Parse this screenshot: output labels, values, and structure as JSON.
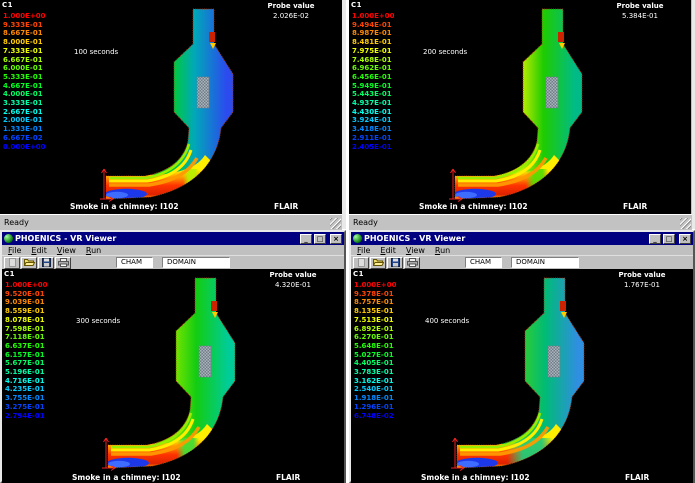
{
  "app": {
    "title": "PHOENICS - VR Viewer",
    "menu": [
      "File",
      "Edit",
      "View",
      "Run"
    ],
    "toolbar": {
      "cham": "CHAM",
      "domain": "DOMAIN",
      "icons": [
        "new",
        "open",
        "save",
        "print"
      ]
    },
    "status": "Ready",
    "window_icons": {
      "minimize": "_",
      "maximize": "□",
      "close": "×"
    }
  },
  "shared": {
    "variable": "C1",
    "probe_label": "Probe value",
    "caption": "Smoke in a chimney: I102",
    "brand": "FLAIR"
  },
  "panels": [
    {
      "time": "100 seconds",
      "probe": "2.026E-02",
      "legend": [
        "1.000E+00",
        "9.333E-01",
        "8.667E-01",
        "8.000E-01",
        "7.333E-01",
        "6.667E-01",
        "6.000E-01",
        "5.333E-01",
        "4.667E-01",
        "4.000E-01",
        "3.333E-01",
        "2.667E-01",
        "2.000E-01",
        "1.333E-01",
        "6.667E-02",
        "0.000E+00"
      ],
      "colors": {
        "left": "#00cc33",
        "mid": "#00a8b8",
        "right": "#2b4bee",
        "iface": "#b8ee00"
      },
      "iface": {
        "x": "183",
        "w": "16"
      }
    },
    {
      "time": "200 seconds",
      "probe": "5.384E-01",
      "legend": [
        "1.000E+00",
        "9.494E-01",
        "8.987E-01",
        "8.481E-01",
        "7.975E-01",
        "7.468E-01",
        "6.962E-01",
        "6.456E-01",
        "5.949E-01",
        "5.443E-01",
        "4.937E-01",
        "4.430E-01",
        "3.924E-01",
        "3.418E-01",
        "2.911E-01",
        "2.405E-01"
      ],
      "colors": {
        "left": "#c6ee00",
        "mid": "#1ecc00",
        "right": "#00bb88",
        "iface": "#55dd00"
      },
      "iface": {
        "x": "177",
        "w": "22"
      }
    },
    {
      "time": "300 seconds",
      "probe": "4.320E-01",
      "legend": [
        "1.000E+00",
        "9.520E-01",
        "9.039E-01",
        "8.559E-01",
        "8.078E-01",
        "7.598E-01",
        "7.118E-01",
        "6.637E-01",
        "6.157E-01",
        "5.677E-01",
        "5.196E-01",
        "4.716E-01",
        "4.235E-01",
        "3.755E-01",
        "3.275E-01",
        "2.794E-01"
      ],
      "colors": {
        "left": "#7ae600",
        "mid": "#12cc12",
        "right": "#00cc99",
        "iface": "#44dd33"
      },
      "iface": {
        "x": "175",
        "w": "22"
      }
    },
    {
      "time": "400 seconds",
      "probe": "1.767E-01",
      "legend": [
        "1.000E+00",
        "9.378E-01",
        "8.757E-01",
        "8.135E-01",
        "7.513E-01",
        "6.892E-01",
        "6.270E-01",
        "5.648E-01",
        "5.027E-01",
        "4.405E-01",
        "3.783E-01",
        "3.162E-01",
        "2.540E-01",
        "1.918E-01",
        "1.296E-01",
        "6.748E-02"
      ],
      "colors": {
        "left": "#2ecc33",
        "mid": "#00bb77",
        "right": "#2f8fe0",
        "iface": "#22cc77"
      },
      "iface": {
        "x": "156",
        "w": "46"
      }
    }
  ],
  "chimney": {
    "outline": "#993311",
    "channel": [
      "#ffee00",
      "#ff9900",
      "#ff3300",
      "#dd2200",
      "#ff8800",
      "#ffbb00"
    ],
    "bands": [
      "#99ee00",
      "#ffee00",
      "#ff9900"
    ],
    "inlet_blue": "#1d38e8",
    "inlet_blue_light": "#3e6cff",
    "baffle_dark": "#707c88",
    "baffle_light": "#aab4bc",
    "probe_box": "#cc2200",
    "probe_arrow": "#ffcc00",
    "axis": "#ee2222"
  }
}
